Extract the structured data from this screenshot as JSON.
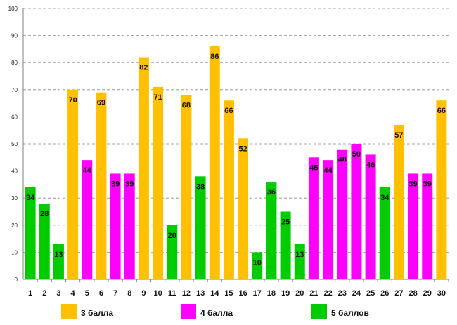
{
  "chart_data": {
    "type": "bar",
    "title": "",
    "xlabel": "",
    "ylabel": "",
    "ylim": [
      0,
      100
    ],
    "yticks": [
      0,
      10,
      20,
      30,
      40,
      50,
      60,
      70,
      80,
      90,
      100
    ],
    "grid": true,
    "legend_position": "bottom",
    "categories": [
      "1",
      "2",
      "3",
      "4",
      "5",
      "6",
      "7",
      "8",
      "9",
      "10",
      "11",
      "12",
      "13",
      "14",
      "15",
      "16",
      "17",
      "18",
      "19",
      "20",
      "21",
      "22",
      "23",
      "24",
      "25",
      "26",
      "27",
      "28",
      "29",
      "30"
    ],
    "values": [
      34,
      28,
      13,
      70,
      44,
      69,
      39,
      39,
      82,
      71,
      20,
      68,
      38,
      86,
      66,
      52,
      10,
      36,
      25,
      13,
      45,
      44,
      48,
      50,
      46,
      34,
      57,
      39,
      39,
      66
    ],
    "groups": [
      "g5",
      "g5",
      "g5",
      "g3",
      "g4",
      "g3",
      "g4",
      "g4",
      "g3",
      "g3",
      "g5",
      "g3",
      "g5",
      "g3",
      "g3",
      "g3",
      "g5",
      "g5",
      "g5",
      "g5",
      "g4",
      "g4",
      "g4",
      "g4",
      "g4",
      "g5",
      "g3",
      "g4",
      "g4",
      "g3"
    ],
    "legend": [
      {
        "key": "g3",
        "label": "3 балла",
        "color": "#FFC000"
      },
      {
        "key": "g4",
        "label": "4 балла",
        "color": "#FF00FF"
      },
      {
        "key": "g5",
        "label": "5 баллов",
        "color": "#00CC00"
      }
    ]
  }
}
